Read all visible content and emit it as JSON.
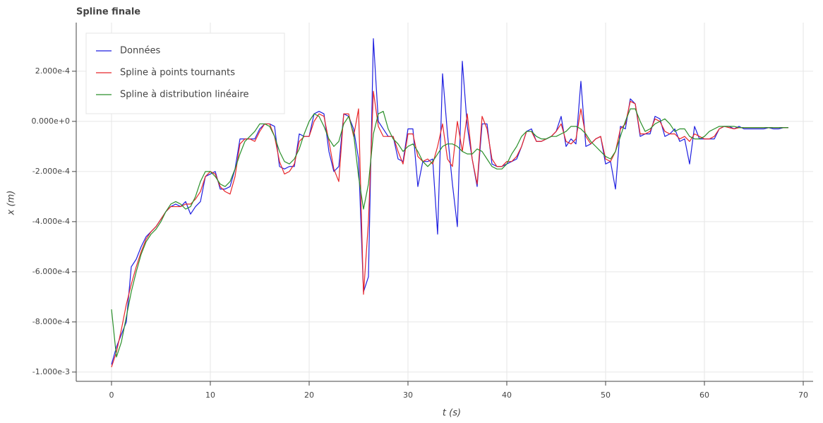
{
  "chart_data": {
    "type": "line",
    "title": "Spline finale",
    "x_label": "t (s)",
    "y_label": "x (m)",
    "xlim": [
      -3.57,
      71
    ],
    "ylim": [
      -0.001037,
      0.000394
    ],
    "xticks": [
      0,
      10,
      20,
      30,
      40,
      50,
      60,
      70
    ],
    "yticks": [
      {
        "value": -0.001,
        "label": "-1.000e-3"
      },
      {
        "value": -0.0008,
        "label": "-8.000e-4"
      },
      {
        "value": -0.0006,
        "label": "-6.000e-4"
      },
      {
        "value": -0.0004,
        "label": "-4.000e-4"
      },
      {
        "value": -0.0002,
        "label": "-2.000e-4"
      },
      {
        "value": 0,
        "label": "0.000e+0"
      },
      {
        "value": 0.0002,
        "label": "2.000e-4"
      }
    ],
    "grid": true,
    "legend": "top_left",
    "x": [
      0,
      0.5,
      1,
      1.5,
      2,
      2.5,
      3,
      3.5,
      4,
      4.5,
      5,
      5.5,
      6,
      6.5,
      7,
      7.5,
      8,
      8.5,
      9,
      9.5,
      10,
      10.5,
      11,
      11.5,
      12,
      12.5,
      13,
      13.5,
      14,
      14.5,
      15,
      15.5,
      16,
      16.5,
      17,
      17.5,
      18,
      18.5,
      19,
      19.5,
      20,
      20.5,
      21,
      21.5,
      22,
      22.5,
      23,
      23.5,
      24,
      24.5,
      25,
      25.5,
      26,
      26.5,
      27,
      27.5,
      28,
      28.5,
      29,
      29.5,
      30,
      30.5,
      31,
      31.5,
      32,
      32.5,
      33,
      33.5,
      34,
      34.5,
      35,
      35.5,
      36,
      36.5,
      37,
      37.5,
      38,
      38.5,
      39,
      39.5,
      40,
      40.5,
      41,
      41.5,
      42,
      42.5,
      43,
      43.5,
      44,
      44.5,
      45,
      45.5,
      46,
      46.5,
      47,
      47.5,
      48,
      48.5,
      49,
      49.5,
      50,
      50.5,
      51,
      51.5,
      52,
      52.5,
      53,
      53.5,
      54,
      54.5,
      55,
      55.5,
      56,
      56.5,
      57,
      57.5,
      58,
      58.5,
      59,
      59.5,
      60,
      60.5,
      61,
      61.5,
      62,
      62.5,
      63,
      63.5,
      64,
      64.5,
      65,
      65.5,
      66,
      66.5,
      67,
      67.5,
      68,
      68.5
    ],
    "series": [
      {
        "name": "Données",
        "color": "#1f1fe0",
        "values": [
          -0.00097,
          -0.0009,
          -0.00085,
          -0.0008,
          -0.00058,
          -0.00055,
          -0.0005,
          -0.00046,
          -0.00044,
          -0.00042,
          -0.00039,
          -0.00036,
          -0.00034,
          -0.00033,
          -0.00034,
          -0.00032,
          -0.00037,
          -0.00034,
          -0.00032,
          -0.00022,
          -0.00021,
          -0.0002,
          -0.00027,
          -0.00027,
          -0.00026,
          -0.00019,
          -7e-05,
          -7e-05,
          -7e-05,
          -7e-05,
          -3e-05,
          -1e-05,
          -1e-05,
          -2e-05,
          -0.00018,
          -0.00019,
          -0.00018,
          -0.00018,
          -5e-05,
          -6e-05,
          -6e-05,
          3e-05,
          4e-05,
          3e-05,
          -0.00012,
          -0.0002,
          -0.00018,
          3e-05,
          2e-05,
          -3e-05,
          -0.00015,
          -0.00068,
          -0.00062,
          0.00033,
          0,
          -3e-05,
          -6e-05,
          -6e-05,
          -0.00015,
          -0.00016,
          -3e-05,
          -3e-05,
          -0.00026,
          -0.00016,
          -0.00016,
          -0.00015,
          -0.00045,
          0.00019,
          -5e-05,
          -0.00025,
          -0.00042,
          0.00024,
          -2e-05,
          -0.00015,
          -0.00026,
          -1e-05,
          -1e-05,
          -0.00017,
          -0.00018,
          -0.00018,
          -0.00017,
          -0.00016,
          -0.00015,
          -0.0001,
          -4e-05,
          -3e-05,
          -8e-05,
          -8e-05,
          -7e-05,
          -6e-05,
          -4e-05,
          2e-05,
          -0.0001,
          -7e-05,
          -9e-05,
          0.00016,
          -0.0001,
          -9e-05,
          -7e-05,
          -6e-05,
          -0.00017,
          -0.00016,
          -0.00027,
          -2e-05,
          -3e-05,
          9e-05,
          7e-05,
          -6e-05,
          -5e-05,
          -5e-05,
          2e-05,
          1e-05,
          -6e-05,
          -5e-05,
          -3e-05,
          -8e-05,
          -7e-05,
          -0.00017,
          -2e-05,
          -7e-05,
          -7e-05,
          -7e-05,
          -7e-05,
          -3e-05,
          -2e-05,
          -2e-05,
          -3e-05,
          -2e-05,
          -3e-05,
          -3e-05,
          -3e-05,
          -3e-05,
          -3e-05,
          -2.5e-05,
          -3e-05,
          -3e-05,
          -2.5e-05,
          -2.5e-05
        ]
      },
      {
        "name": "Spline à points tournants",
        "color": "#e8262a",
        "values": [
          -0.00098,
          -0.00092,
          -0.00083,
          -0.00073,
          -0.00065,
          -0.00058,
          -0.00052,
          -0.00047,
          -0.00044,
          -0.00042,
          -0.00039,
          -0.00036,
          -0.00034,
          -0.00034,
          -0.00034,
          -0.00033,
          -0.00033,
          -0.00031,
          -0.00028,
          -0.00022,
          -0.0002,
          -0.00021,
          -0.00026,
          -0.00028,
          -0.00029,
          -0.00022,
          -9e-05,
          -7e-05,
          -7e-05,
          -8e-05,
          -4e-05,
          -1e-05,
          -1e-05,
          -6e-05,
          -0.00016,
          -0.00021,
          -0.0002,
          -0.00017,
          -8e-05,
          -6e-05,
          -6e-05,
          0,
          3e-05,
          2e-05,
          -8e-05,
          -0.00019,
          -0.00024,
          3e-05,
          3e-05,
          -6e-05,
          5e-05,
          -0.00069,
          -0.0004,
          0.00012,
          -2e-05,
          -6e-05,
          -6e-05,
          -6e-05,
          -0.00012,
          -0.00017,
          -5e-05,
          -5e-05,
          -0.00014,
          -0.00016,
          -0.00015,
          -0.00017,
          -0.0001,
          -1e-05,
          -0.00015,
          -0.00018,
          0,
          -0.00012,
          3e-05,
          -0.00015,
          -0.00025,
          2e-05,
          -3e-05,
          -0.00015,
          -0.00018,
          -0.00018,
          -0.00016,
          -0.00016,
          -0.00014,
          -0.0001,
          -4e-05,
          -4e-05,
          -8e-05,
          -8e-05,
          -7e-05,
          -6e-05,
          -4e-05,
          -1e-05,
          -8e-05,
          -9e-05,
          -7e-05,
          5e-05,
          -6e-05,
          -9e-05,
          -7e-05,
          -6e-05,
          -0.00015,
          -0.00016,
          -0.00012,
          -3e-05,
          -1e-05,
          8e-05,
          7e-05,
          -5e-05,
          -5e-05,
          -4e-05,
          1e-05,
          0,
          -4e-05,
          -5e-05,
          -5e-05,
          -7e-05,
          -6e-05,
          -8e-05,
          -5e-05,
          -6e-05,
          -7e-05,
          -7e-05,
          -6e-05,
          -3e-05,
          -2e-05,
          -2.5e-05,
          -3e-05,
          -2.5e-05,
          -2.5e-05,
          -2.5e-05,
          -2.5e-05,
          -2.5e-05,
          -2.5e-05,
          -2.5e-05,
          -2.5e-05,
          -2.5e-05,
          -2.5e-05,
          -2.5e-05
        ]
      },
      {
        "name": "Spline à distribution linéaire",
        "color": "#2a8f2a",
        "values": [
          -0.00075,
          -0.00094,
          -0.00088,
          -0.00078,
          -0.00068,
          -0.0006,
          -0.00053,
          -0.00048,
          -0.00045,
          -0.00043,
          -0.0004,
          -0.00036,
          -0.00033,
          -0.00032,
          -0.00033,
          -0.00035,
          -0.00034,
          -0.0003,
          -0.00024,
          -0.0002,
          -0.0002,
          -0.00022,
          -0.00025,
          -0.00026,
          -0.00024,
          -0.00019,
          -0.00013,
          -8e-05,
          -6e-05,
          -4e-05,
          -1e-05,
          -1e-05,
          -2e-05,
          -6e-05,
          -0.00012,
          -0.00016,
          -0.00017,
          -0.00015,
          -0.00011,
          -5e-05,
          0,
          3e-05,
          2e-05,
          -2e-05,
          -7e-05,
          -0.0001,
          -8e-05,
          -1e-05,
          2e-05,
          -5e-05,
          -0.00022,
          -0.00035,
          -0.00025,
          -5e-05,
          3e-05,
          4e-05,
          -3e-05,
          -7e-05,
          -9e-05,
          -0.00012,
          -0.0001,
          -9e-05,
          -0.00012,
          -0.00016,
          -0.00018,
          -0.00016,
          -0.00013,
          -0.0001,
          -9e-05,
          -9e-05,
          -0.0001,
          -0.00012,
          -0.00013,
          -0.00013,
          -0.00011,
          -0.00012,
          -0.00015,
          -0.00018,
          -0.00019,
          -0.00019,
          -0.00017,
          -0.00013,
          -0.0001,
          -6e-05,
          -4e-05,
          -4e-05,
          -6e-05,
          -7e-05,
          -7e-05,
          -6e-05,
          -6e-05,
          -5e-05,
          -4e-05,
          -2e-05,
          -2e-05,
          -3e-05,
          -5e-05,
          -8e-05,
          -0.0001,
          -0.00012,
          -0.00014,
          -0.00015,
          -0.00012,
          -6e-05,
          0,
          5e-05,
          5e-05,
          0,
          -4e-05,
          -3e-05,
          -1e-05,
          0,
          1e-05,
          -1e-05,
          -4e-05,
          -3e-05,
          -3e-05,
          -6e-05,
          -7e-05,
          -7e-05,
          -6e-05,
          -4e-05,
          -3e-05,
          -2e-05,
          -2e-05,
          -2e-05,
          -2e-05,
          -2.5e-05,
          -2.5e-05,
          -2.5e-05,
          -2.5e-05,
          -2.5e-05,
          -2.5e-05,
          -2.5e-05,
          -2.5e-05,
          -2.5e-05,
          -2.5e-05,
          -2.5e-05
        ]
      }
    ]
  }
}
